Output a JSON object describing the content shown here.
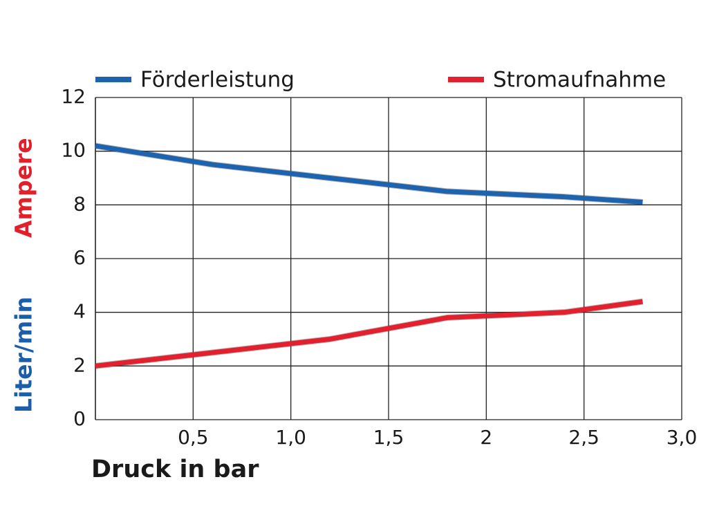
{
  "chart_data": {
    "type": "line",
    "xlabel": "Druck in bar",
    "ylabel": [
      {
        "text": "Liter/min",
        "color": "#1d5ea8"
      },
      {
        "text": "Ampere",
        "color": "#e2202c"
      }
    ],
    "x": [
      0,
      0.6,
      1.2,
      1.8,
      2.4,
      2.8
    ],
    "series": [
      {
        "name": "Förderleistung",
        "color": "#1d63ad",
        "values": [
          10.2,
          9.5,
          9.0,
          8.5,
          8.3,
          8.1
        ]
      },
      {
        "name": "Stromaufnahme",
        "color": "#e3202d",
        "values": [
          2.0,
          2.5,
          3.0,
          3.8,
          4.0,
          4.4
        ]
      }
    ],
    "xlim": [
      0,
      3
    ],
    "xticks": [
      {
        "value": 0.5,
        "label": "0,5"
      },
      {
        "value": 1.0,
        "label": "1,0"
      },
      {
        "value": 1.5,
        "label": "1,5"
      },
      2,
      {
        "value": 2.5,
        "label": "2,5"
      },
      {
        "value": 3.0,
        "label": "3,0"
      }
    ],
    "ylim": [
      0,
      12
    ],
    "yticks": [
      0,
      2,
      4,
      6,
      8,
      10,
      12
    ],
    "grid": true,
    "legend": "top"
  }
}
